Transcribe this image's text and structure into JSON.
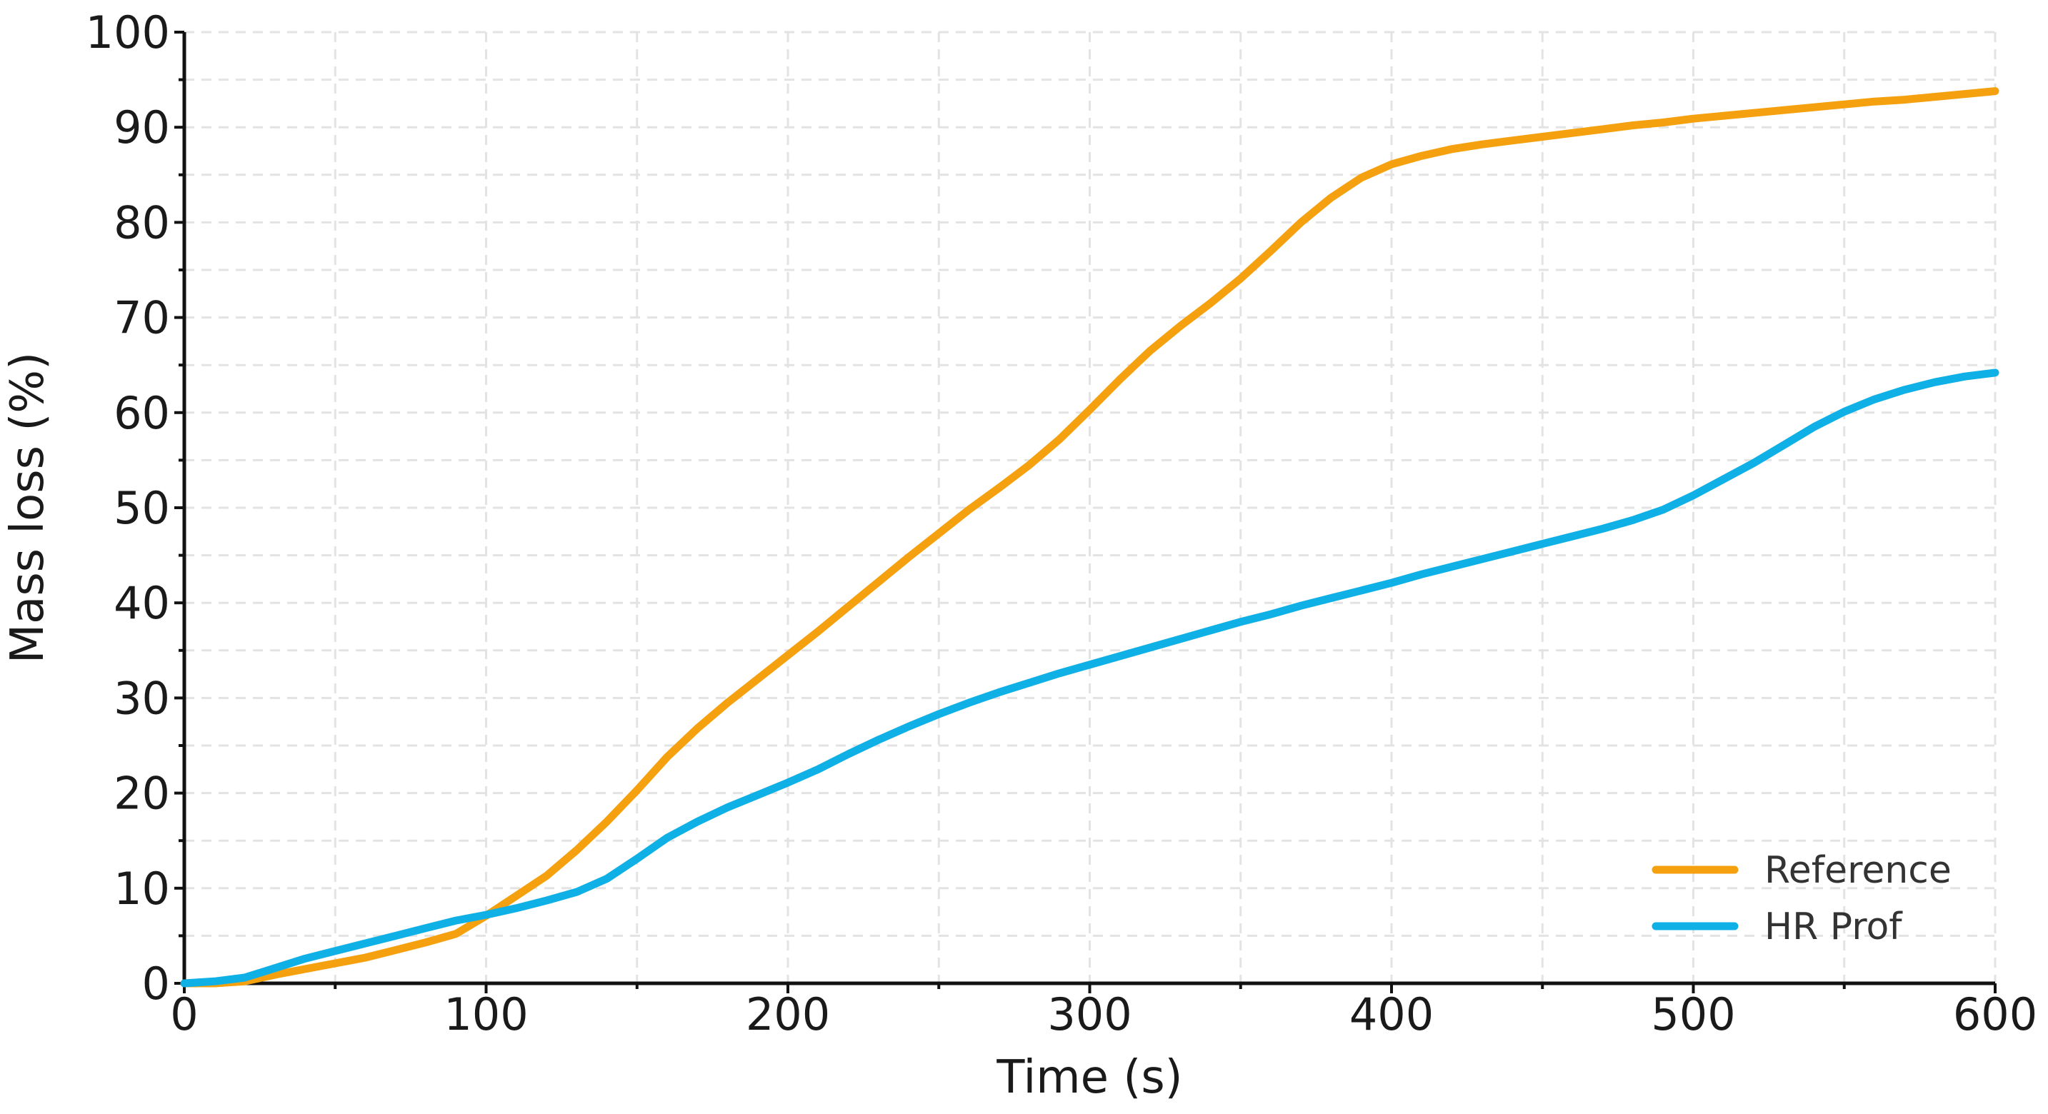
{
  "chart_data": {
    "type": "line",
    "xlabel": "Time (s)",
    "ylabel": "Mass loss (%)",
    "xlim": [
      0,
      600
    ],
    "ylim": [
      0,
      100
    ],
    "xticks": [
      0,
      100,
      200,
      300,
      400,
      500,
      600
    ],
    "yticks": [
      0,
      10,
      20,
      30,
      40,
      50,
      60,
      70,
      80,
      90,
      100
    ],
    "xtick_labels": [
      "0",
      "100",
      "200",
      "300",
      "400",
      "500",
      "600"
    ],
    "ytick_labels": [
      "0",
      "10",
      "20",
      "30",
      "40",
      "50",
      "60",
      "70",
      "80",
      "90",
      "100"
    ],
    "grid": true,
    "legend_position": "bottom-right",
    "series": [
      {
        "name": "Reference",
        "color": "#F5A10F",
        "x": [
          0,
          10,
          20,
          30,
          40,
          50,
          60,
          70,
          80,
          90,
          100,
          110,
          120,
          130,
          140,
          150,
          160,
          170,
          180,
          190,
          200,
          210,
          220,
          230,
          240,
          250,
          260,
          270,
          280,
          290,
          300,
          310,
          320,
          330,
          340,
          350,
          360,
          370,
          380,
          390,
          400,
          410,
          420,
          430,
          440,
          450,
          460,
          470,
          480,
          490,
          500,
          510,
          520,
          530,
          540,
          550,
          560,
          570,
          580,
          590,
          600
        ],
        "y": [
          0,
          0,
          0.2,
          0.9,
          1.5,
          2.1,
          2.7,
          3.5,
          4.3,
          5.2,
          7.1,
          9.2,
          11.3,
          14.0,
          17.0,
          20.3,
          23.8,
          26.8,
          29.5,
          32.0,
          34.5,
          37.0,
          39.6,
          42.2,
          44.8,
          47.3,
          49.8,
          52.1,
          54.5,
          57.2,
          60.3,
          63.5,
          66.5,
          69.1,
          71.5,
          74.1,
          77.0,
          80.0,
          82.6,
          84.7,
          86.1,
          87.0,
          87.7,
          88.2,
          88.6,
          89.0,
          89.4,
          89.8,
          90.2,
          90.5,
          90.9,
          91.2,
          91.5,
          91.8,
          92.1,
          92.4,
          92.7,
          92.9,
          93.2,
          93.5,
          93.8
        ]
      },
      {
        "name": "HR Prof",
        "color": "#0FB0E5",
        "x": [
          0,
          10,
          20,
          30,
          40,
          50,
          60,
          70,
          80,
          90,
          100,
          110,
          120,
          130,
          140,
          150,
          160,
          170,
          180,
          190,
          200,
          210,
          220,
          230,
          240,
          250,
          260,
          270,
          280,
          290,
          300,
          310,
          320,
          330,
          340,
          350,
          360,
          370,
          380,
          390,
          400,
          410,
          420,
          430,
          440,
          450,
          460,
          470,
          480,
          490,
          500,
          510,
          520,
          530,
          540,
          550,
          560,
          570,
          580,
          590,
          600
        ],
        "y": [
          0,
          0.2,
          0.6,
          1.6,
          2.6,
          3.4,
          4.2,
          5.0,
          5.8,
          6.6,
          7.2,
          7.9,
          8.7,
          9.6,
          11.0,
          13.1,
          15.3,
          17.0,
          18.5,
          19.8,
          21.1,
          22.5,
          24.1,
          25.6,
          27.0,
          28.3,
          29.5,
          30.6,
          31.6,
          32.6,
          33.5,
          34.4,
          35.3,
          36.2,
          37.1,
          38.0,
          38.8,
          39.7,
          40.5,
          41.3,
          42.1,
          43.0,
          43.8,
          44.6,
          45.4,
          46.2,
          47.0,
          47.8,
          48.7,
          49.8,
          51.3,
          53.0,
          54.7,
          56.6,
          58.5,
          60.1,
          61.4,
          62.4,
          63.2,
          63.8,
          64.2
        ]
      }
    ]
  }
}
